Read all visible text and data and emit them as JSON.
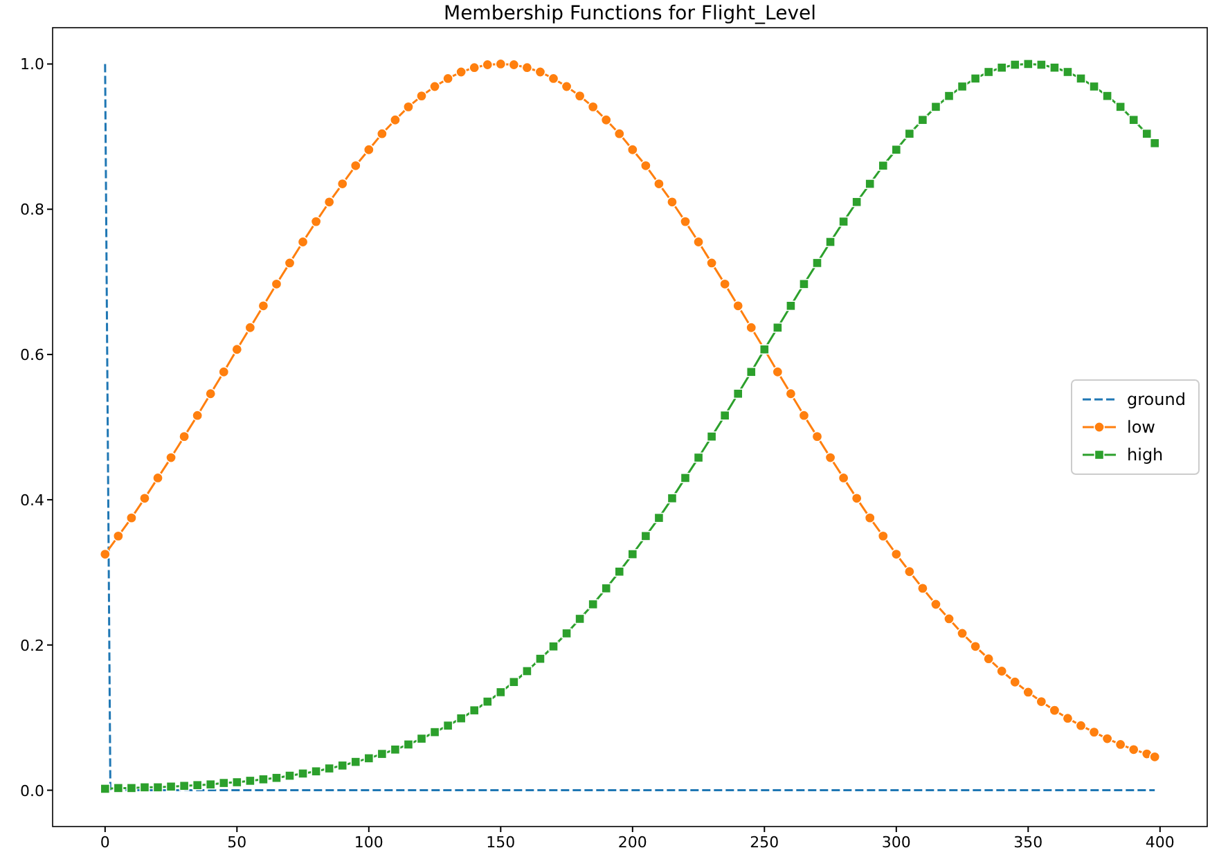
{
  "chart_data": {
    "type": "line",
    "title": "Membership Functions for Flight_Level",
    "x": [
      0,
      5,
      10,
      15,
      20,
      25,
      30,
      35,
      40,
      45,
      50,
      55,
      60,
      65,
      70,
      75,
      80,
      85,
      90,
      95,
      100,
      105,
      110,
      115,
      120,
      125,
      130,
      135,
      140,
      145,
      150,
      155,
      160,
      165,
      170,
      175,
      180,
      185,
      190,
      195,
      200,
      205,
      210,
      215,
      220,
      225,
      230,
      235,
      240,
      245,
      250,
      255,
      260,
      265,
      270,
      275,
      280,
      285,
      290,
      295,
      300,
      305,
      310,
      315,
      320,
      325,
      330,
      335,
      340,
      345,
      350,
      355,
      360,
      365,
      370,
      375,
      380,
      385,
      390,
      395,
      398
    ],
    "series": [
      {
        "name": "ground",
        "color": "#1f77b4",
        "x": [
          0,
          2,
          398
        ],
        "values": [
          1,
          0,
          0
        ],
        "marker": "none",
        "line_style": "dashed"
      },
      {
        "name": "low",
        "color": "#ff7f0e",
        "marker": "circle",
        "line_style": "solid",
        "values": [
          0.325,
          0.35,
          0.375,
          0.402,
          0.43,
          0.458,
          0.487,
          0.516,
          0.546,
          0.576,
          0.607,
          0.637,
          0.667,
          0.697,
          0.726,
          0.755,
          0.783,
          0.81,
          0.835,
          0.86,
          0.882,
          0.904,
          0.923,
          0.941,
          0.956,
          0.969,
          0.98,
          0.989,
          0.995,
          0.999,
          1,
          0.999,
          0.995,
          0.989,
          0.98,
          0.969,
          0.956,
          0.941,
          0.923,
          0.904,
          0.882,
          0.86,
          0.835,
          0.81,
          0.783,
          0.755,
          0.726,
          0.697,
          0.667,
          0.637,
          0.607,
          0.576,
          0.546,
          0.516,
          0.487,
          0.458,
          0.43,
          0.402,
          0.375,
          0.35,
          0.325,
          0.301,
          0.278,
          0.256,
          0.236,
          0.216,
          0.198,
          0.181,
          0.164,
          0.149,
          0.135,
          0.122,
          0.11,
          0.099,
          0.089,
          0.08,
          0.071,
          0.063,
          0.056,
          0.05,
          0.046
        ]
      },
      {
        "name": "high",
        "color": "#2ca02c",
        "marker": "square",
        "line_style": "solid",
        "values": [
          0.002,
          0.003,
          0.003,
          0.004,
          0.004,
          0.005,
          0.006,
          0.007,
          0.008,
          0.01,
          0.011,
          0.013,
          0.015,
          0.017,
          0.02,
          0.023,
          0.026,
          0.03,
          0.034,
          0.039,
          0.044,
          0.05,
          0.056,
          0.063,
          0.071,
          0.08,
          0.089,
          0.099,
          0.11,
          0.122,
          0.135,
          0.149,
          0.164,
          0.181,
          0.198,
          0.216,
          0.236,
          0.256,
          0.278,
          0.301,
          0.325,
          0.35,
          0.375,
          0.402,
          0.43,
          0.458,
          0.487,
          0.516,
          0.546,
          0.576,
          0.607,
          0.637,
          0.667,
          0.697,
          0.726,
          0.755,
          0.783,
          0.81,
          0.835,
          0.86,
          0.882,
          0.904,
          0.923,
          0.941,
          0.956,
          0.969,
          0.98,
          0.989,
          0.995,
          0.999,
          1,
          0.999,
          0.995,
          0.989,
          0.98,
          0.969,
          0.956,
          0.941,
          0.923,
          0.904,
          0.891
        ]
      }
    ],
    "xlim": [
      -19.9,
      417.9
    ],
    "ylim": [
      -0.05,
      1.05
    ],
    "xticks": [
      0,
      50,
      100,
      150,
      200,
      250,
      300,
      350,
      400
    ],
    "yticks": [
      {
        "value": 0,
        "label": "0.0"
      },
      {
        "value": 0.2,
        "label": "0.2"
      },
      {
        "value": 0.4,
        "label": "0.4"
      },
      {
        "value": 0.6,
        "label": "0.6"
      },
      {
        "value": 0.8,
        "label": "0.8"
      },
      {
        "value": 1,
        "label": "1.0"
      }
    ],
    "grid": false,
    "legend": "center right"
  }
}
